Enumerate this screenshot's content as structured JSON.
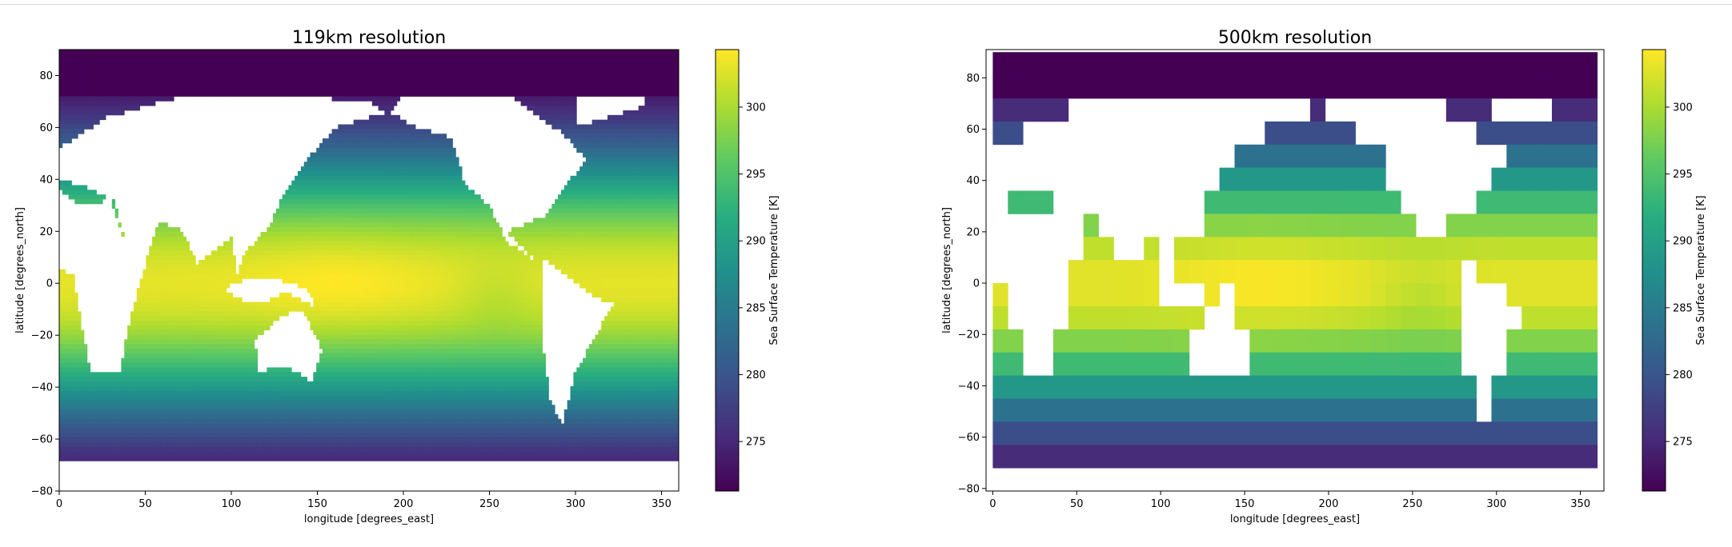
{
  "chart_data": [
    {
      "type": "heatmap",
      "title": "119km resolution",
      "xlabel": "longitude [degrees_east]",
      "ylabel": "latitude [degrees_north]",
      "xlim": [
        0,
        360
      ],
      "ylim": [
        -80,
        90
      ],
      "xticks": [
        "0",
        "50",
        "100",
        "150",
        "200",
        "250",
        "300",
        "350"
      ],
      "yticks": [
        "80",
        "60",
        "40",
        "20",
        "0",
        "−20",
        "−40",
        "−60",
        "−80"
      ],
      "colorbar": {
        "label": "Sea Surface Temperature [K]",
        "range": [
          271.3,
          304.3
        ],
        "ticks": [
          "275",
          "280",
          "285",
          "290",
          "295",
          "300"
        ]
      },
      "colormap": "viridis",
      "missing_color": "#ffffff"
    },
    {
      "type": "heatmap",
      "title": "500km resolution",
      "xlabel": "longitude [degrees_east]",
      "ylabel": "latitude [degrees_north]",
      "xlim": [
        -4,
        364
      ],
      "ylim": [
        -81,
        91
      ],
      "xticks": [
        "0",
        "50",
        "100",
        "150",
        "200",
        "250",
        "300",
        "350"
      ],
      "yticks": [
        "80",
        "60",
        "40",
        "20",
        "0",
        "−20",
        "−40",
        "−60",
        "−80"
      ],
      "colorbar": {
        "label": "Sea Surface Temperature [K]",
        "range": [
          271.3,
          304.3
        ],
        "ticks": [
          "275",
          "280",
          "285",
          "290",
          "295",
          "300"
        ]
      },
      "colormap": "viridis",
      "missing_color": "#ffffff"
    }
  ]
}
